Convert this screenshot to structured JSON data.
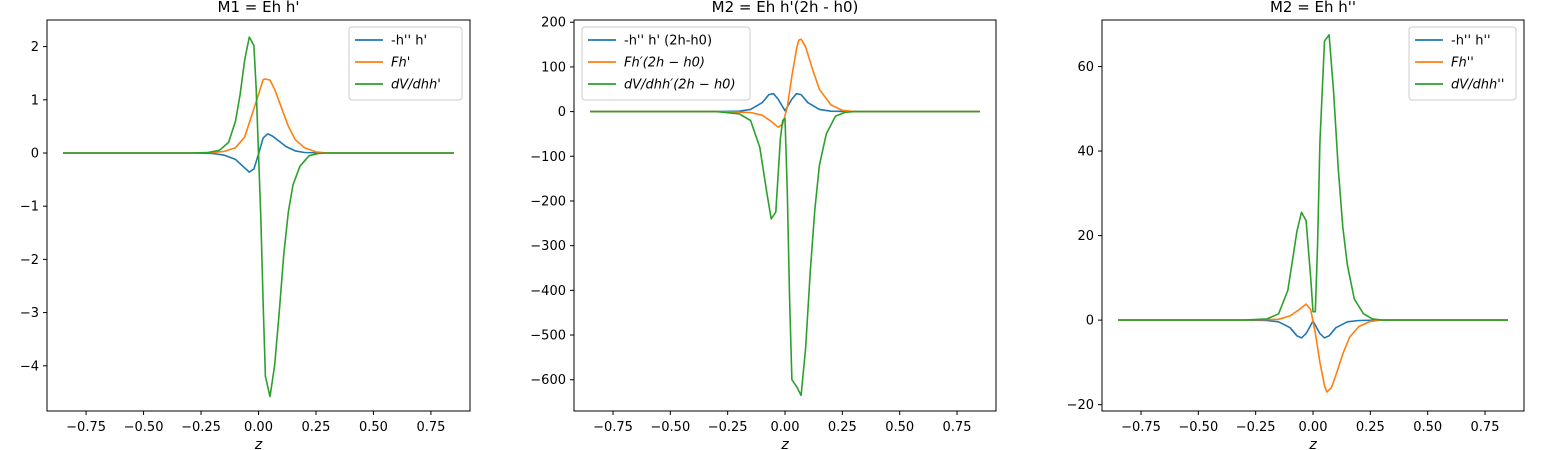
{
  "chart_data": [
    {
      "type": "line",
      "title": "M1 = Eh h'",
      "xlabel": "z",
      "xlim": [
        -0.92,
        0.92
      ],
      "ylim": [
        -4.85,
        2.5
      ],
      "xticks": [
        -0.75,
        -0.5,
        -0.25,
        0.0,
        0.25,
        0.5,
        0.75
      ],
      "xtick_labels": [
        "−0.75",
        "−0.50",
        "−0.25",
        "0.00",
        "0.25",
        "0.50",
        "0.75"
      ],
      "yticks": [
        -4,
        -3,
        -2,
        -1,
        0,
        1,
        2
      ],
      "ytick_labels": [
        "−4",
        "−3",
        "−2",
        "−1",
        "0",
        "1",
        "2"
      ],
      "legend_position": "top-right",
      "series": [
        {
          "name": "-h'' h'",
          "color": "#1f77b4",
          "x": [
            -0.85,
            -0.3,
            -0.2,
            -0.15,
            -0.1,
            -0.07,
            -0.04,
            -0.02,
            0.0,
            0.02,
            0.04,
            0.06,
            0.09,
            0.12,
            0.16,
            0.2,
            0.3,
            0.85
          ],
          "y": [
            0,
            0,
            -0.01,
            -0.04,
            -0.12,
            -0.24,
            -0.36,
            -0.3,
            -0.02,
            0.28,
            0.36,
            0.32,
            0.22,
            0.12,
            0.04,
            0.01,
            0,
            0
          ]
        },
        {
          "name": "Fh'",
          "color": "#ff7f0e",
          "x": [
            -0.85,
            -0.3,
            -0.2,
            -0.15,
            -0.1,
            -0.06,
            -0.03,
            0.0,
            0.02,
            0.03,
            0.05,
            0.07,
            0.1,
            0.13,
            0.16,
            0.2,
            0.25,
            0.3,
            0.85
          ],
          "y": [
            0,
            0,
            0.01,
            0.03,
            0.1,
            0.3,
            0.7,
            1.1,
            1.38,
            1.39,
            1.37,
            1.2,
            0.85,
            0.5,
            0.25,
            0.1,
            0.02,
            0,
            0
          ]
        },
        {
          "name": "dV/dhh'",
          "color": "#2ca02c",
          "x": [
            -0.85,
            -0.3,
            -0.22,
            -0.17,
            -0.13,
            -0.1,
            -0.08,
            -0.06,
            -0.04,
            -0.02,
            -0.01,
            0.0,
            0.01,
            0.02,
            0.03,
            0.05,
            0.07,
            0.09,
            0.11,
            0.13,
            0.15,
            0.18,
            0.22,
            0.26,
            0.3,
            0.85
          ],
          "y": [
            0,
            0,
            0.01,
            0.05,
            0.2,
            0.6,
            1.1,
            1.75,
            2.18,
            2.02,
            1.2,
            0.0,
            -1.2,
            -2.8,
            -4.2,
            -4.58,
            -4.0,
            -3.0,
            -1.9,
            -1.1,
            -0.6,
            -0.25,
            -0.05,
            -0.01,
            0,
            0
          ]
        }
      ]
    },
    {
      "type": "line",
      "title": "M2 = Eh h'(2h - h0)",
      "xlabel": "z",
      "xlim": [
        -0.92,
        0.92
      ],
      "ylim": [
        -670,
        205
      ],
      "xticks": [
        -0.75,
        -0.5,
        -0.25,
        0.0,
        0.25,
        0.5,
        0.75
      ],
      "xtick_labels": [
        "−0.75",
        "−0.50",
        "−0.25",
        "0.00",
        "0.25",
        "0.50",
        "0.75"
      ],
      "yticks": [
        -600,
        -500,
        -400,
        -300,
        -200,
        -100,
        0,
        100,
        200
      ],
      "ytick_labels": [
        "−600",
        "−500",
        "−400",
        "−300",
        "−200",
        "−100",
        "0",
        "100",
        "200"
      ],
      "legend_position": "top-left",
      "series": [
        {
          "name": "-h'' h' (2h-h0)",
          "color": "#1f77b4",
          "x": [
            -0.85,
            -0.3,
            -0.2,
            -0.15,
            -0.1,
            -0.07,
            -0.05,
            -0.03,
            0.0,
            0.03,
            0.05,
            0.07,
            0.1,
            0.15,
            0.2,
            0.3,
            0.85
          ],
          "y": [
            0,
            0,
            1,
            5,
            20,
            38,
            40,
            28,
            2,
            28,
            40,
            38,
            20,
            5,
            1,
            0,
            0
          ]
        },
        {
          "name": "Fh′(2h − h0)",
          "color": "#ff7f0e",
          "x": [
            -0.85,
            -0.3,
            -0.15,
            -0.1,
            -0.06,
            -0.03,
            -0.01,
            0.01,
            0.03,
            0.05,
            0.06,
            0.07,
            0.09,
            0.12,
            0.15,
            0.2,
            0.25,
            0.3,
            0.85
          ],
          "y": [
            0,
            0,
            -2,
            -8,
            -22,
            -35,
            -28,
            10,
            80,
            140,
            160,
            162,
            145,
            95,
            50,
            15,
            3,
            0,
            0
          ]
        },
        {
          "name": "dV/dhh′(2h − h0)",
          "color": "#2ca02c",
          "x": [
            -0.85,
            -0.3,
            -0.2,
            -0.15,
            -0.11,
            -0.08,
            -0.06,
            -0.04,
            -0.02,
            -0.01,
            0.0,
            0.01,
            0.02,
            0.03,
            0.05,
            0.07,
            0.09,
            0.11,
            0.13,
            0.15,
            0.18,
            0.22,
            0.26,
            0.3,
            0.85
          ],
          "y": [
            0,
            0,
            -5,
            -20,
            -80,
            -180,
            -240,
            -225,
            -60,
            -20,
            -15,
            -180,
            -420,
            -600,
            -615,
            -635,
            -530,
            -360,
            -220,
            -120,
            -50,
            -10,
            -2,
            0,
            0
          ]
        }
      ]
    },
    {
      "type": "line",
      "title": "M2 = Eh h''",
      "xlabel": "z",
      "xlim": [
        -0.92,
        0.92
      ],
      "ylim": [
        -21.5,
        71
      ],
      "xticks": [
        -0.75,
        -0.5,
        -0.25,
        0.0,
        0.25,
        0.5,
        0.75
      ],
      "xtick_labels": [
        "−0.75",
        "−0.50",
        "−0.25",
        "0.00",
        "0.25",
        "0.50",
        "0.75"
      ],
      "yticks": [
        -20,
        0,
        20,
        40,
        60
      ],
      "ytick_labels": [
        "−20",
        "0",
        "20",
        "40",
        "60"
      ],
      "legend_position": "top-right",
      "series": [
        {
          "name": "-h'' h''",
          "color": "#1f77b4",
          "x": [
            -0.85,
            -0.3,
            -0.2,
            -0.15,
            -0.1,
            -0.07,
            -0.05,
            -0.03,
            0.0,
            0.03,
            0.05,
            0.07,
            0.1,
            0.15,
            0.2,
            0.3,
            0.85
          ],
          "y": [
            0,
            0,
            -0.1,
            -0.4,
            -1.8,
            -3.7,
            -4.2,
            -3.2,
            -0.2,
            -3.2,
            -4.2,
            -3.7,
            -1.8,
            -0.4,
            -0.1,
            0,
            0
          ]
        },
        {
          "name": "Fh''",
          "color": "#ff7f0e",
          "x": [
            -0.85,
            -0.3,
            -0.15,
            -0.1,
            -0.06,
            -0.03,
            -0.01,
            0.01,
            0.03,
            0.05,
            0.06,
            0.08,
            0.1,
            0.13,
            0.16,
            0.2,
            0.25,
            0.3,
            0.85
          ],
          "y": [
            0,
            0,
            0.2,
            1.0,
            2.5,
            3.8,
            2.5,
            -3.0,
            -10,
            -15.5,
            -17,
            -16,
            -13,
            -8,
            -4,
            -1.5,
            -0.3,
            0,
            0
          ]
        },
        {
          "name": "dV/dhh''",
          "color": "#2ca02c",
          "x": [
            -0.85,
            -0.3,
            -0.2,
            -0.15,
            -0.11,
            -0.09,
            -0.07,
            -0.05,
            -0.03,
            -0.01,
            0.0,
            0.01,
            0.02,
            0.03,
            0.05,
            0.07,
            0.09,
            0.11,
            0.13,
            0.15,
            0.18,
            0.22,
            0.26,
            0.3,
            0.85
          ],
          "y": [
            0,
            0,
            0.3,
            1.5,
            7,
            14,
            21,
            25.5,
            23.5,
            10,
            2,
            2,
            18,
            42,
            66,
            67.5,
            54,
            36,
            22,
            13,
            5,
            1.5,
            0.3,
            0,
            0
          ]
        }
      ]
    }
  ]
}
